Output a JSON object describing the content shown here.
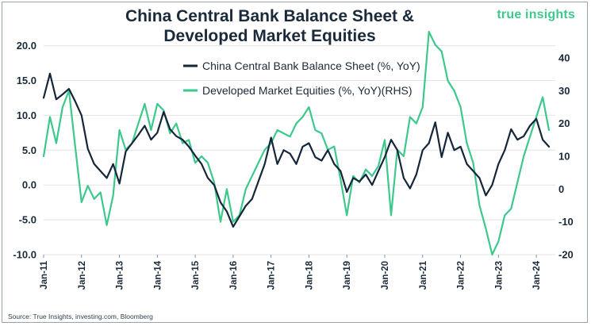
{
  "header": {
    "title_line1": "China Central Bank Balance Sheet &",
    "title_line2": "Developed Market Equities",
    "brand": "true insights"
  },
  "footer": {
    "source": "Source: True Insights, investing.com, Bloomberg"
  },
  "colors": {
    "china": "#16263a",
    "equities": "#3dc88c",
    "grid": "#e1e4e8"
  },
  "chart_data": {
    "type": "line",
    "title": "China Central Bank Balance Sheet & Developed Market Equities",
    "legend_position": "top-center",
    "grid": true,
    "x_tick_labels": [
      "Jan-11",
      "Jan-12",
      "Jan-13",
      "Jan-14",
      "Jan-15",
      "Jan-16",
      "Jan-17",
      "Jan-18",
      "Jan-19",
      "Jan-20",
      "Jan-21",
      "Jan-22",
      "Jan-23",
      "Jan-24"
    ],
    "left_axis": {
      "ylim": [
        -10,
        22
      ],
      "ticks": [
        "20.0",
        "15.0",
        "10.0",
        "5.0",
        "0.0",
        "-5.0",
        "-10.0"
      ]
    },
    "right_axis": {
      "ylim": [
        -20,
        48
      ],
      "ticks": [
        "40",
        "30",
        "20",
        "10",
        "0",
        "-10",
        "-20"
      ]
    },
    "series": [
      {
        "name": "China Central Bank Balance Sheet (%, YoY)",
        "axis": "left",
        "x": [
          "2011-01",
          "2011-03",
          "2011-05",
          "2011-07",
          "2011-09",
          "2011-11",
          "2012-01",
          "2012-03",
          "2012-05",
          "2012-07",
          "2012-09",
          "2012-11",
          "2013-01",
          "2013-03",
          "2013-05",
          "2013-07",
          "2013-09",
          "2013-11",
          "2014-01",
          "2014-03",
          "2014-05",
          "2014-07",
          "2014-09",
          "2014-11",
          "2015-01",
          "2015-03",
          "2015-05",
          "2015-07",
          "2015-09",
          "2015-11",
          "2016-01",
          "2016-03",
          "2016-05",
          "2016-07",
          "2016-09",
          "2016-11",
          "2017-01",
          "2017-03",
          "2017-05",
          "2017-07",
          "2017-09",
          "2017-11",
          "2018-01",
          "2018-03",
          "2018-05",
          "2018-07",
          "2018-09",
          "2018-11",
          "2019-01",
          "2019-03",
          "2019-05",
          "2019-07",
          "2019-09",
          "2019-11",
          "2020-01",
          "2020-03",
          "2020-05",
          "2020-07",
          "2020-09",
          "2020-11",
          "2021-01",
          "2021-03",
          "2021-05",
          "2021-07",
          "2021-09",
          "2021-11",
          "2022-01",
          "2022-03",
          "2022-05",
          "2022-07",
          "2022-09",
          "2022-11",
          "2023-01",
          "2023-03",
          "2023-05",
          "2023-07",
          "2023-09",
          "2023-11",
          "2024-01",
          "2024-03",
          "2024-05"
        ],
        "values": [
          12.5,
          16.0,
          12.3,
          13.0,
          13.8,
          12.0,
          10.0,
          5.2,
          3.0,
          2.0,
          1.0,
          3.0,
          0.2,
          4.8,
          6.0,
          7.2,
          8.5,
          6.5,
          7.5,
          10.5,
          8.0,
          7.0,
          6.5,
          5.5,
          4.2,
          3.0,
          1.0,
          0.0,
          -2.5,
          -3.8,
          -6.0,
          -4.5,
          -3.0,
          -2.0,
          0.5,
          3.0,
          6.8,
          3.0,
          5.0,
          4.5,
          3.0,
          5.5,
          6.0,
          4.0,
          3.5,
          5.0,
          3.0,
          2.0,
          -1.0,
          1.0,
          0.5,
          1.5,
          0.0,
          2.0,
          4.0,
          6.5,
          5.0,
          1.0,
          -0.5,
          1.5,
          5.0,
          6.0,
          9.0,
          4.0,
          7.5,
          5.0,
          5.5,
          3.0,
          2.0,
          1.0,
          -1.5,
          0.0,
          3.0,
          5.0,
          8.0,
          6.5,
          7.0,
          8.5,
          9.5,
          6.5,
          5.5
        ]
      },
      {
        "name": "Developed Market Equities (%, YoY)(RHS)",
        "axis": "right",
        "x": [
          "2011-01",
          "2011-03",
          "2011-05",
          "2011-07",
          "2011-09",
          "2011-11",
          "2012-01",
          "2012-03",
          "2012-05",
          "2012-07",
          "2012-09",
          "2012-11",
          "2013-01",
          "2013-03",
          "2013-05",
          "2013-07",
          "2013-09",
          "2013-11",
          "2014-01",
          "2014-03",
          "2014-05",
          "2014-07",
          "2014-09",
          "2014-11",
          "2015-01",
          "2015-03",
          "2015-05",
          "2015-07",
          "2015-09",
          "2015-11",
          "2016-01",
          "2016-03",
          "2016-05",
          "2016-07",
          "2016-09",
          "2016-11",
          "2017-01",
          "2017-03",
          "2017-05",
          "2017-07",
          "2017-09",
          "2017-11",
          "2018-01",
          "2018-03",
          "2018-05",
          "2018-07",
          "2018-09",
          "2018-11",
          "2019-01",
          "2019-03",
          "2019-05",
          "2019-07",
          "2019-09",
          "2019-11",
          "2020-01",
          "2020-03",
          "2020-05",
          "2020-07",
          "2020-09",
          "2020-11",
          "2021-01",
          "2021-03",
          "2021-05",
          "2021-07",
          "2021-09",
          "2021-11",
          "2022-01",
          "2022-03",
          "2022-05",
          "2022-07",
          "2022-09",
          "2022-11",
          "2023-01",
          "2023-03",
          "2023-05",
          "2023-07",
          "2023-09",
          "2023-11",
          "2024-01",
          "2024-03",
          "2024-05"
        ],
        "values": [
          10,
          22,
          14,
          25,
          30,
          13,
          -4,
          1,
          -3,
          -1,
          -11,
          -2,
          18,
          12,
          14,
          20,
          26,
          18,
          26,
          24,
          17,
          20,
          14,
          15,
          8,
          10,
          8,
          2,
          -10,
          0,
          -10,
          -8,
          0,
          4,
          8,
          12,
          14,
          18,
          17,
          16,
          20,
          22,
          25,
          18,
          17,
          12,
          13,
          3,
          -8,
          4,
          2,
          6,
          4,
          7,
          15,
          -8,
          12,
          10,
          22,
          20,
          25,
          48,
          44,
          42,
          33,
          30,
          25,
          14,
          8,
          -5,
          -12,
          -20,
          -16,
          -8,
          -6,
          2,
          10,
          16,
          22,
          28,
          18
        ]
      }
    ]
  }
}
